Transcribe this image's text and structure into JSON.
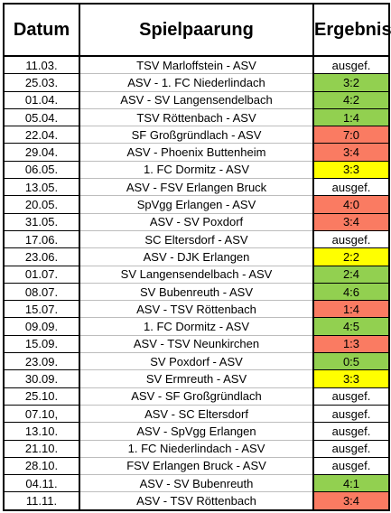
{
  "headers": {
    "date": "Datum",
    "match": "Spielpaarung",
    "result": "Ergebnis"
  },
  "result_colors": {
    "win": "#92d050",
    "loss": "#fa7b62",
    "draw": "#ffff00",
    "none": "#ffffff"
  },
  "rows": [
    {
      "date": "11.03.",
      "match": "TSV Marloffstein - ASV",
      "result": "ausgef.",
      "status": "none"
    },
    {
      "date": "25.03.",
      "match": "ASV - 1. FC Niederlindach",
      "result": "3:2",
      "status": "win"
    },
    {
      "date": "01.04.",
      "match": "ASV - SV Langensendelbach",
      "result": "4:2",
      "status": "win"
    },
    {
      "date": "05.04.",
      "match": "TSV Röttenbach - ASV",
      "result": "1:4",
      "status": "win"
    },
    {
      "date": "22.04.",
      "match": "SF Großgründlach - ASV",
      "result": "7:0",
      "status": "loss"
    },
    {
      "date": "29.04.",
      "match": "ASV - Phoenix Buttenheim",
      "result": "3:4",
      "status": "loss"
    },
    {
      "date": "06.05.",
      "match": "1. FC Dormitz - ASV",
      "result": "3:3",
      "status": "draw"
    },
    {
      "date": "13.05.",
      "match": "ASV - FSV Erlangen Bruck",
      "result": "ausgef.",
      "status": "none"
    },
    {
      "date": "20.05.",
      "match": "SpVgg Erlangen - ASV",
      "result": "4:0",
      "status": "loss"
    },
    {
      "date": "31.05.",
      "match": "ASV - SV Poxdorf",
      "result": "3:4",
      "status": "loss"
    },
    {
      "date": "17.06.",
      "match": "SC Eltersdorf - ASV",
      "result": "ausgef.",
      "status": "none"
    },
    {
      "date": "23.06.",
      "match": "ASV - DJK Erlangen",
      "result": "2:2",
      "status": "draw"
    },
    {
      "date": "01.07.",
      "match": "SV Langensendelbach - ASV",
      "result": "2:4",
      "status": "win"
    },
    {
      "date": "08.07.",
      "match": "SV Bubenreuth - ASV",
      "result": "4:6",
      "status": "win"
    },
    {
      "date": "15.07.",
      "match": "ASV - TSV Röttenbach",
      "result": "1:4",
      "status": "loss"
    },
    {
      "date": "09.09.",
      "match": "1. FC Dormitz - ASV",
      "result": "4:5",
      "status": "win"
    },
    {
      "date": "15.09.",
      "match": "ASV - TSV Neunkirchen",
      "result": "1:3",
      "status": "loss"
    },
    {
      "date": "23.09.",
      "match": "SV Poxdorf - ASV",
      "result": "0:5",
      "status": "win"
    },
    {
      "date": "30.09.",
      "match": "SV Ermreuth - ASV",
      "result": "3:3",
      "status": "draw"
    },
    {
      "date": "25.10.",
      "match": "ASV - SF Großgründlach",
      "result": "ausgef.",
      "status": "none"
    },
    {
      "date": "07.10,",
      "match": "ASV - SC Eltersdorf",
      "result": "ausgef.",
      "status": "none"
    },
    {
      "date": "13.10.",
      "match": "ASV - SpVgg Erlangen",
      "result": "ausgef.",
      "status": "none"
    },
    {
      "date": "21.10.",
      "match": "1. FC Niederlindach - ASV",
      "result": "ausgef.",
      "status": "none"
    },
    {
      "date": "28.10.",
      "match": "FSV Erlangen Bruck - ASV",
      "result": "ausgef.",
      "status": "none"
    },
    {
      "date": "04.11.",
      "match": "ASV - SV Bubenreuth",
      "result": "4:1",
      "status": "win"
    },
    {
      "date": "11.11.",
      "match": "ASV - TSV Röttenbach",
      "result": "3:4",
      "status": "loss"
    }
  ]
}
